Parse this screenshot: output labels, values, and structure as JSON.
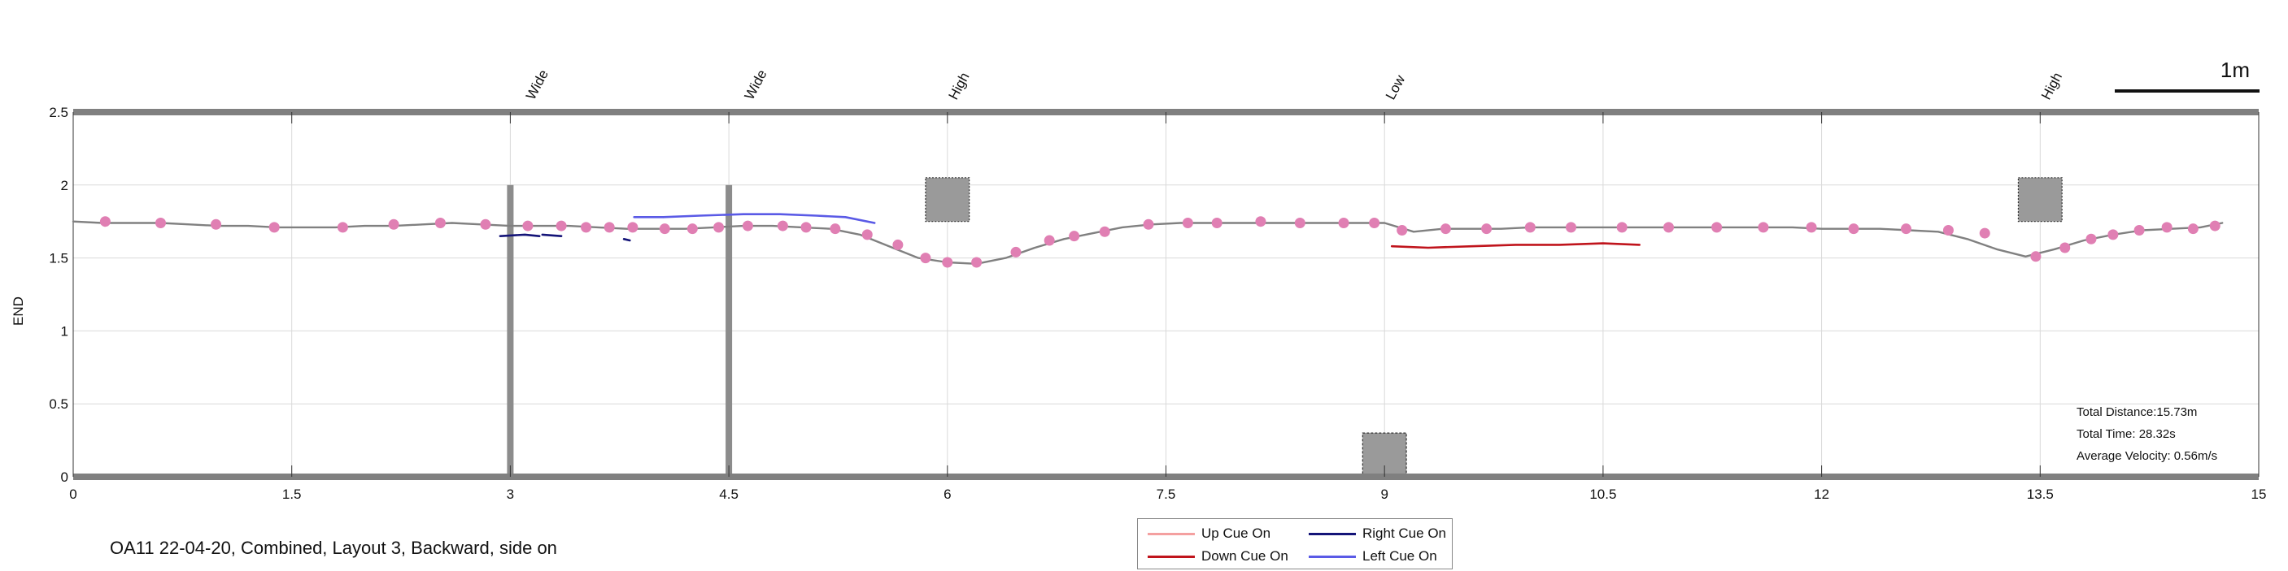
{
  "chart_data": {
    "type": "line",
    "title": "",
    "xlabel": "",
    "ylabel": "END",
    "xlim": [
      0,
      15
    ],
    "ylim": [
      0,
      2.5
    ],
    "x_ticks": [
      0,
      1.5,
      3,
      4.5,
      6,
      7.5,
      9,
      10.5,
      12,
      13.5,
      15
    ],
    "x_tick_labels": [
      "0",
      "1.5",
      "3",
      "4.5",
      "6",
      "7.5",
      "9",
      "10.5",
      "12",
      "13.5",
      "15"
    ],
    "y_ticks": [
      0,
      0.5,
      1,
      1.5,
      2,
      2.5
    ],
    "y_tick_labels": [
      "0",
      "0.5",
      "1",
      "1.5",
      "2",
      "2.5"
    ],
    "grid": true,
    "scale_bar_label": "1m",
    "obstacle_labels": [
      {
        "x": 3.2,
        "text": "Wide"
      },
      {
        "x": 4.7,
        "text": "Wide"
      },
      {
        "x": 6.1,
        "text": "High"
      },
      {
        "x": 9.1,
        "text": "Low"
      },
      {
        "x": 13.6,
        "text": "High"
      }
    ],
    "obstacles": [
      {
        "kind": "wide",
        "x": 3.0,
        "y0": 0,
        "y1": 2.0
      },
      {
        "kind": "wide",
        "x": 4.5,
        "y0": 0,
        "y1": 2.0
      },
      {
        "kind": "high",
        "x0": 5.85,
        "x1": 6.15,
        "y0": 1.75,
        "y1": 2.05
      },
      {
        "kind": "low",
        "x0": 8.85,
        "x1": 9.15,
        "y0": 0,
        "y1": 0.3
      },
      {
        "kind": "high",
        "x0": 13.35,
        "x1": 13.65,
        "y0": 1.75,
        "y1": 2.05
      }
    ],
    "series": [
      {
        "name": "",
        "color": "#808080",
        "x": [
          0,
          0.2,
          0.4,
          0.6,
          0.8,
          1.0,
          1.2,
          1.4,
          1.6,
          1.8,
          2.0,
          2.2,
          2.4,
          2.6,
          2.8,
          3.0,
          3.2,
          3.4,
          3.6,
          3.8,
          4.0,
          4.2,
          4.4,
          4.6,
          4.8,
          5.0,
          5.2,
          5.4,
          5.6,
          5.8,
          6.0,
          6.2,
          6.4,
          6.6,
          6.8,
          7.0,
          7.2,
          7.4,
          7.6,
          7.8,
          8.0,
          8.2,
          8.4,
          8.6,
          8.8,
          9.0,
          9.2,
          9.4,
          9.6,
          9.8,
          10.0,
          10.2,
          10.4,
          10.6,
          10.8,
          11.0,
          11.2,
          11.4,
          11.6,
          11.8,
          12.0,
          12.2,
          12.4,
          12.6,
          12.8,
          13.0,
          13.2,
          13.4,
          13.6,
          13.8,
          14.0,
          14.2,
          14.4,
          14.6,
          14.75
        ],
        "y": [
          1.75,
          1.74,
          1.74,
          1.74,
          1.73,
          1.72,
          1.72,
          1.71,
          1.71,
          1.71,
          1.72,
          1.72,
          1.73,
          1.74,
          1.73,
          1.72,
          1.72,
          1.72,
          1.71,
          1.7,
          1.7,
          1.7,
          1.71,
          1.72,
          1.72,
          1.71,
          1.7,
          1.66,
          1.58,
          1.5,
          1.47,
          1.46,
          1.5,
          1.57,
          1.63,
          1.67,
          1.71,
          1.73,
          1.74,
          1.74,
          1.74,
          1.74,
          1.74,
          1.74,
          1.74,
          1.74,
          1.68,
          1.7,
          1.7,
          1.7,
          1.71,
          1.71,
          1.71,
          1.71,
          1.71,
          1.71,
          1.71,
          1.71,
          1.71,
          1.71,
          1.7,
          1.7,
          1.7,
          1.69,
          1.68,
          1.63,
          1.56,
          1.51,
          1.56,
          1.62,
          1.66,
          1.69,
          1.7,
          1.71,
          1.74
        ]
      },
      {
        "name": "",
        "color": "#e07fb3",
        "markers_only": true,
        "x": [
          0.22,
          0.6,
          0.98,
          1.38,
          1.85,
          2.2,
          2.52,
          2.83,
          3.12,
          3.35,
          3.52,
          3.68,
          3.84,
          4.06,
          4.25,
          4.43,
          4.63,
          4.87,
          5.03,
          5.23,
          5.45,
          5.66,
          5.85,
          6.0,
          6.2,
          6.47,
          6.7,
          6.87,
          7.08,
          7.38,
          7.65,
          7.85,
          8.15,
          8.42,
          8.72,
          8.93,
          9.12,
          9.42,
          9.7,
          10.0,
          10.28,
          10.63,
          10.95,
          11.28,
          11.6,
          11.93,
          12.22,
          12.58,
          12.87,
          13.12,
          13.47,
          13.67,
          13.85,
          14.0,
          14.18,
          14.37,
          14.55,
          14.7
        ],
        "y": [
          1.75,
          1.74,
          1.73,
          1.71,
          1.71,
          1.73,
          1.74,
          1.73,
          1.72,
          1.72,
          1.71,
          1.71,
          1.71,
          1.7,
          1.7,
          1.71,
          1.72,
          1.72,
          1.71,
          1.7,
          1.66,
          1.59,
          1.5,
          1.47,
          1.47,
          1.54,
          1.62,
          1.65,
          1.68,
          1.73,
          1.74,
          1.74,
          1.75,
          1.74,
          1.74,
          1.74,
          1.69,
          1.7,
          1.7,
          1.71,
          1.71,
          1.71,
          1.71,
          1.71,
          1.71,
          1.71,
          1.7,
          1.7,
          1.69,
          1.67,
          1.51,
          1.57,
          1.63,
          1.66,
          1.69,
          1.71,
          1.7,
          1.72
        ]
      },
      {
        "name": "Down Cue On",
        "color": "#c0141c",
        "x": [
          9.05,
          9.3,
          9.6,
          9.9,
          10.2,
          10.5,
          10.75
        ],
        "y": [
          1.58,
          1.57,
          1.58,
          1.59,
          1.59,
          1.6,
          1.59
        ]
      },
      {
        "name": "Right Cue On",
        "color": "#141478",
        "x": [
          2.93,
          3.1,
          3.2
        ],
        "y": [
          1.65,
          1.66,
          1.65
        ]
      },
      {
        "name": "Right Cue On",
        "color": "#141478",
        "x": [
          3.22,
          3.35
        ],
        "y": [
          1.66,
          1.65
        ]
      },
      {
        "name": "Right Cue On",
        "color": "#141478",
        "x": [
          3.78,
          3.82
        ],
        "y": [
          1.63,
          1.62
        ]
      },
      {
        "name": "Left Cue On",
        "color": "#5a5ae6",
        "x": [
          3.85,
          3.95,
          4.05
        ],
        "y": [
          1.78,
          1.78,
          1.78
        ]
      },
      {
        "name": "Left Cue On",
        "color": "#5a5ae6",
        "x": [
          4.05,
          4.3,
          4.6,
          4.85,
          5.1,
          5.3,
          5.5
        ],
        "y": [
          1.78,
          1.79,
          1.8,
          1.8,
          1.79,
          1.78,
          1.74
        ]
      }
    ],
    "stats": {
      "total_distance": "Total Distance:15.73m",
      "total_time": "Total Time: 28.32s",
      "average_velocity": "Average Velocity: 0.56m/s"
    },
    "legend": {
      "placement": "bottom-center",
      "entries": [
        {
          "label": "Up Cue On",
          "color": "#f4a0a0"
        },
        {
          "label": "Right Cue On",
          "color": "#141478"
        },
        {
          "label": "Down Cue On",
          "color": "#c0141c"
        },
        {
          "label": "Left Cue On",
          "color": "#5a5ae6"
        }
      ]
    }
  },
  "caption": "OA11 22-04-20, Combined, Layout 3, Backward, side on"
}
